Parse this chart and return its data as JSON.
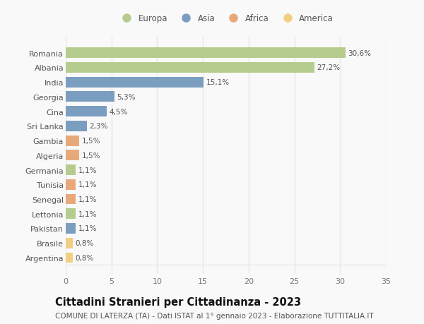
{
  "countries": [
    "Romania",
    "Albania",
    "India",
    "Georgia",
    "Cina",
    "Sri Lanka",
    "Gambia",
    "Algeria",
    "Germania",
    "Tunisia",
    "Senegal",
    "Lettonia",
    "Pakistan",
    "Brasile",
    "Argentina"
  ],
  "values": [
    30.6,
    27.2,
    15.1,
    5.3,
    4.5,
    2.3,
    1.5,
    1.5,
    1.1,
    1.1,
    1.1,
    1.1,
    1.1,
    0.8,
    0.8
  ],
  "labels": [
    "30,6%",
    "27,2%",
    "15,1%",
    "5,3%",
    "4,5%",
    "2,3%",
    "1,5%",
    "1,5%",
    "1,1%",
    "1,1%",
    "1,1%",
    "1,1%",
    "1,1%",
    "0,8%",
    "0,8%"
  ],
  "continents": [
    "Europa",
    "Europa",
    "Asia",
    "Asia",
    "Asia",
    "Asia",
    "Africa",
    "Africa",
    "Europa",
    "Africa",
    "Africa",
    "Europa",
    "Asia",
    "America",
    "America"
  ],
  "continent_colors": {
    "Europa": "#b5cc8e",
    "Asia": "#7b9ec0",
    "Africa": "#e8a97a",
    "America": "#f0d080"
  },
  "legend_order": [
    "Europa",
    "Asia",
    "Africa",
    "America"
  ],
  "title": "Cittadini Stranieri per Cittadinanza - 2023",
  "subtitle": "COMUNE DI LATERZA (TA) - Dati ISTAT al 1° gennaio 2023 - Elaborazione TUTTITALIA.IT",
  "xlim": [
    0,
    35
  ],
  "xticks": [
    0,
    5,
    10,
    15,
    20,
    25,
    30,
    35
  ],
  "background_color": "#f9f9f9",
  "grid_color": "#e8e8e8",
  "bar_height": 0.72,
  "title_fontsize": 10.5,
  "subtitle_fontsize": 7.5,
  "tick_fontsize": 8,
  "label_fontsize": 7.5,
  "legend_fontsize": 8.5
}
